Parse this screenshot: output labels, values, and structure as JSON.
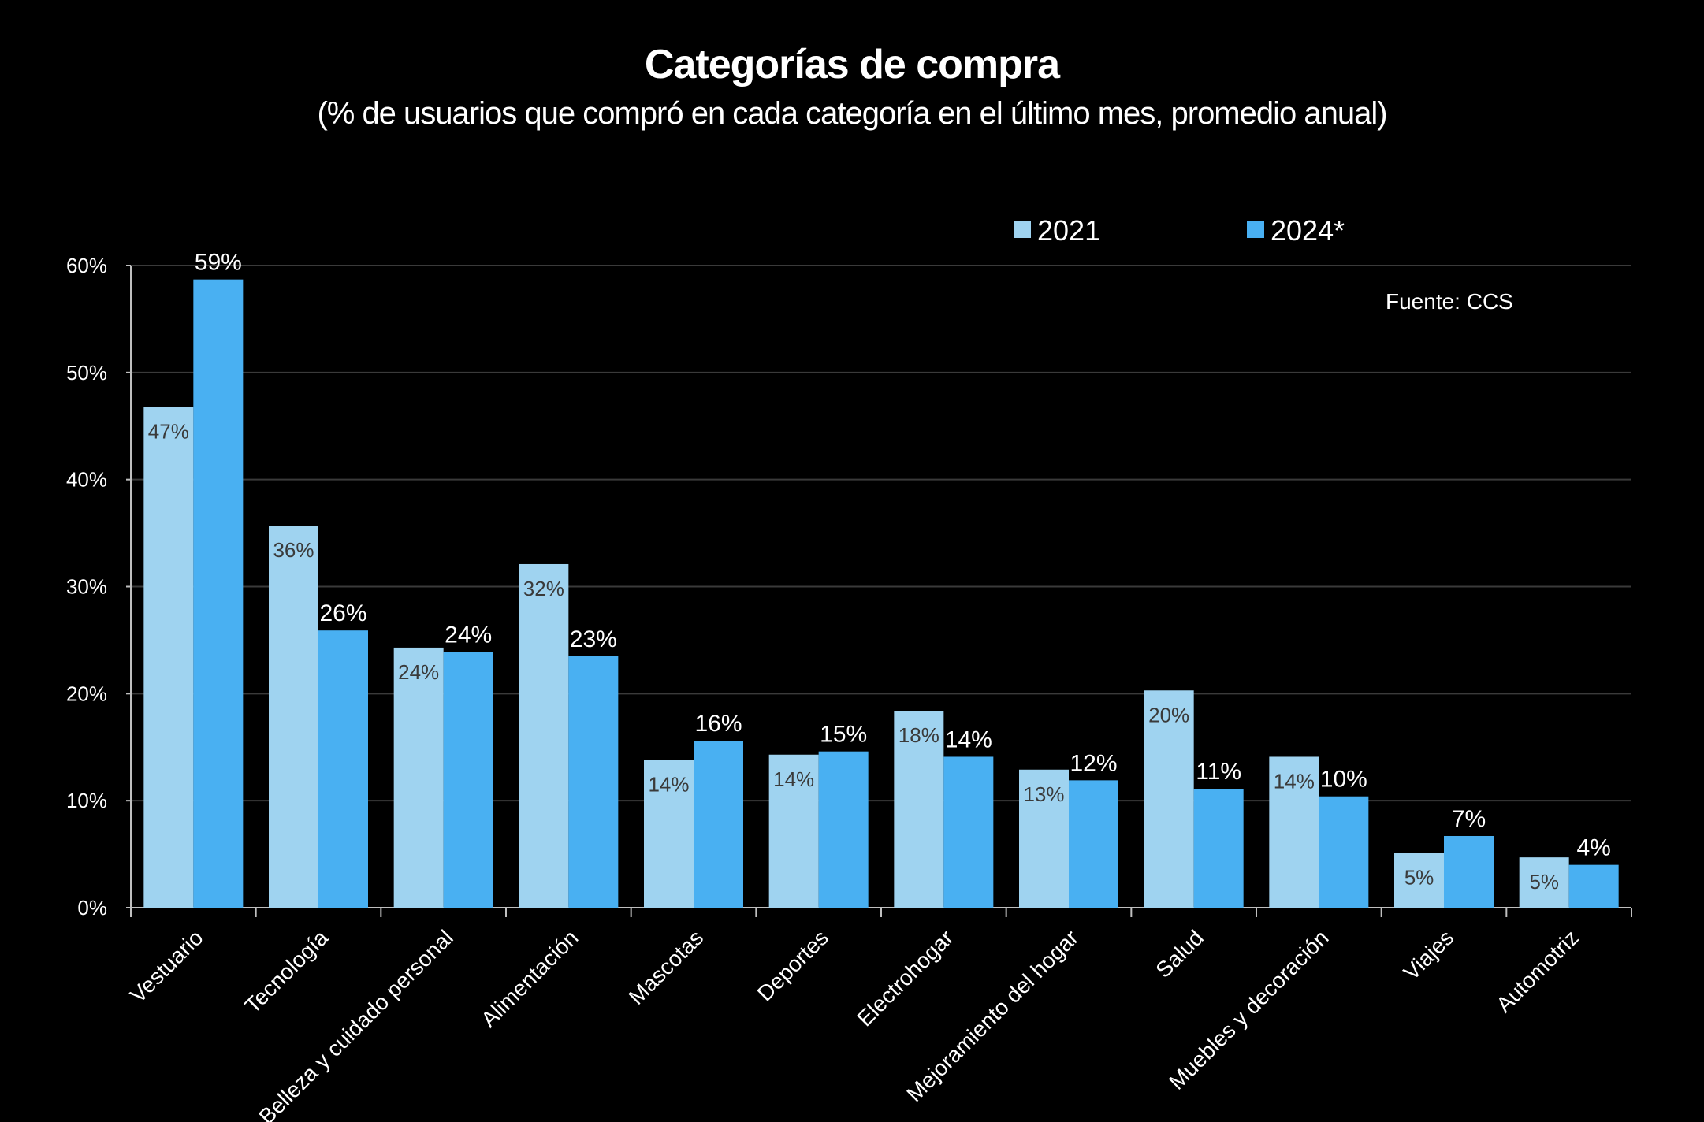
{
  "chart_data": {
    "type": "bar",
    "title": "Categorías de compra",
    "subtitle": "(% de usuarios que compró en cada categoría en el último mes, promedio anual)",
    "source": "Fuente: CCS",
    "categories": [
      "Vestuario",
      "Tecnología",
      "Belleza y cuidado personal",
      "Alimentación",
      "Mascotas",
      "Deportes",
      "Electrohogar",
      "Mejoramiento del hogar",
      "Salud",
      "Muebles y decoración",
      "Viajes",
      "Automotriz"
    ],
    "series": [
      {
        "name": "2021",
        "color": "#9fd3f0",
        "values": [
          46.8,
          35.7,
          24.3,
          32.1,
          13.8,
          14.3,
          18.4,
          12.9,
          20.3,
          14.1,
          5.1,
          4.7
        ],
        "labels": [
          "47%",
          "36%",
          "24%",
          "32%",
          "14%",
          "14%",
          "18%",
          "13%",
          "20%",
          "14%",
          "5%",
          "5%"
        ]
      },
      {
        "name": "2024*",
        "color": "#49b0f2",
        "values": [
          58.7,
          25.9,
          23.9,
          23.5,
          15.6,
          14.6,
          14.1,
          11.9,
          11.1,
          10.4,
          6.7,
          4.0
        ],
        "labels": [
          "59%",
          "26%",
          "24%",
          "23%",
          "16%",
          "15%",
          "14%",
          "12%",
          "11%",
          "10%",
          "7%",
          "4%"
        ]
      }
    ],
    "yticks": [
      "0%",
      "10%",
      "20%",
      "30%",
      "40%",
      "50%",
      "60%"
    ],
    "ylim": [
      0,
      60
    ],
    "grid": true,
    "legend": "top-right"
  }
}
